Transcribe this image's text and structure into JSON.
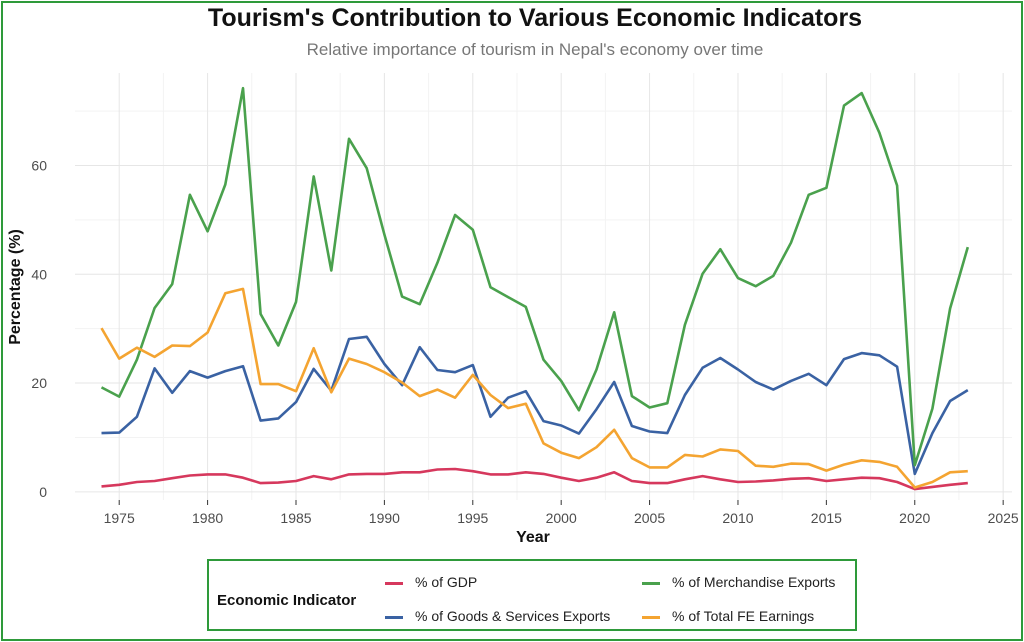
{
  "title": "Tourism's Contribution to Various Economic Indicators",
  "subtitle": "Relative importance of tourism in Nepal's economy over time",
  "legend_title": "Economic Indicator",
  "chart_data": {
    "type": "line",
    "xlabel": "Year",
    "ylabel": "Percentage (%)",
    "xlim": [
      1972.5,
      2025.5
    ],
    "ylim": [
      -1.5,
      77
    ],
    "x_ticks": [
      1975,
      1980,
      1985,
      1990,
      1995,
      2000,
      2005,
      2010,
      2015,
      2020,
      2025
    ],
    "y_ticks": [
      0,
      20,
      40,
      60
    ],
    "grid": true,
    "legend_position": "bottom",
    "x": [
      1974,
      1975,
      1976,
      1977,
      1978,
      1979,
      1980,
      1981,
      1982,
      1983,
      1984,
      1985,
      1986,
      1987,
      1988,
      1989,
      1990,
      1991,
      1992,
      1993,
      1994,
      1995,
      1996,
      1997,
      1998,
      1999,
      2000,
      2001,
      2002,
      2003,
      2004,
      2005,
      2006,
      2007,
      2008,
      2009,
      2010,
      2011,
      2012,
      2013,
      2014,
      2015,
      2016,
      2017,
      2018,
      2019,
      2020,
      2021,
      2022,
      2023
    ],
    "series": [
      {
        "name": "% of GDP",
        "color": "#d6385d",
        "values": [
          1.0,
          1.3,
          1.8,
          2.0,
          2.5,
          3.0,
          3.2,
          3.2,
          2.6,
          1.6,
          1.7,
          2.0,
          2.9,
          2.3,
          3.2,
          3.3,
          3.3,
          3.6,
          3.6,
          4.1,
          4.2,
          3.8,
          3.2,
          3.2,
          3.6,
          3.3,
          2.6,
          2.0,
          2.6,
          3.6,
          2.0,
          1.6,
          1.6,
          2.3,
          2.9,
          2.3,
          1.8,
          1.9,
          2.1,
          2.4,
          2.5,
          2.0,
          2.3,
          2.6,
          2.5,
          1.8,
          0.5,
          0.9,
          1.3,
          1.6
        ]
      },
      {
        "name": "% of Goods & Services Exports",
        "color": "#3a62a3",
        "values": [
          10.8,
          10.9,
          13.8,
          22.7,
          18.2,
          22.2,
          21.0,
          22.2,
          23.1,
          13.1,
          13.5,
          16.5,
          22.6,
          18.6,
          28.1,
          28.5,
          23.5,
          19.6,
          26.6,
          22.4,
          22.0,
          23.3,
          13.8,
          17.3,
          18.5,
          13.0,
          12.2,
          10.7,
          15.2,
          20.2,
          12.1,
          11.1,
          10.8,
          17.8,
          22.8,
          24.6,
          22.5,
          20.2,
          18.8,
          20.4,
          21.7,
          19.6,
          24.4,
          25.5,
          25.1,
          23.0,
          3.3,
          10.8,
          16.7,
          18.7
        ]
      },
      {
        "name": "% of Merchandise Exports",
        "color": "#4aa14d",
        "values": [
          19.2,
          17.5,
          24.3,
          33.8,
          38.2,
          54.6,
          47.9,
          56.5,
          74.2,
          32.7,
          26.9,
          34.9,
          58.0,
          40.7,
          64.9,
          59.5,
          47.3,
          35.9,
          34.5,
          42.1,
          50.9,
          48.2,
          37.6,
          35.8,
          34.0,
          24.3,
          20.4,
          15.0,
          22.5,
          33.0,
          17.6,
          15.5,
          16.3,
          30.7,
          40.1,
          44.6,
          39.3,
          37.8,
          39.7,
          45.8,
          54.6,
          55.9,
          71.0,
          73.3,
          66.0,
          56.3,
          4.9,
          15.3,
          33.7,
          45.0
        ]
      },
      {
        "name": "% of Total FE Earnings",
        "color": "#f4a431",
        "values": [
          30.1,
          24.5,
          26.5,
          24.8,
          26.9,
          26.8,
          29.3,
          36.5,
          37.3,
          19.8,
          19.8,
          18.5,
          26.4,
          18.3,
          24.5,
          23.5,
          22.0,
          20.1,
          17.6,
          18.8,
          17.3,
          21.5,
          17.8,
          15.4,
          16.2,
          8.9,
          7.2,
          6.2,
          8.2,
          11.4,
          6.2,
          4.5,
          4.5,
          6.8,
          6.5,
          7.8,
          7.5,
          4.8,
          4.6,
          5.2,
          5.1,
          3.9,
          5.0,
          5.8,
          5.5,
          4.6,
          0.8,
          1.8,
          3.6,
          3.8
        ]
      }
    ]
  }
}
